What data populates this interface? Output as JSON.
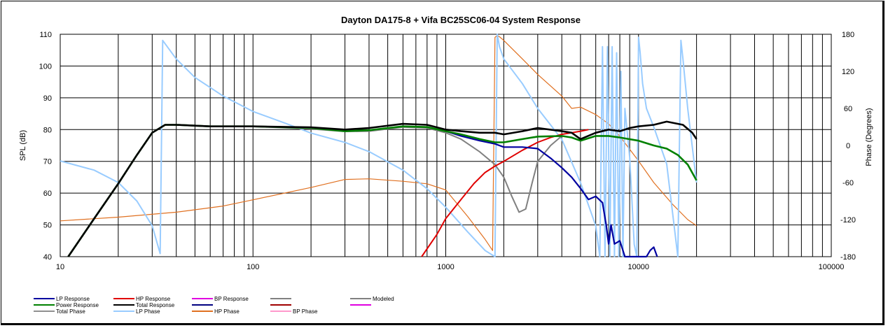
{
  "chart_data": {
    "type": "line",
    "title": "Dayton DA175-8  + Vifa BC25SC06-04      System Response",
    "ylabel": "SPL (dB)",
    "y2label": "Phase (Degrees)",
    "xscale": "log",
    "xlim": [
      10,
      100000
    ],
    "ylim": [
      40,
      110
    ],
    "y2lim": [
      -180,
      180
    ],
    "x_ticks": [
      "10",
      "100",
      "1000",
      "10000",
      "100000"
    ],
    "y_ticks": [
      "40",
      "50",
      "60",
      "70",
      "80",
      "90",
      "100",
      "110"
    ],
    "y2_ticks": [
      "-180",
      "-120",
      "-60",
      "0",
      "60",
      "120",
      "180"
    ],
    "grid": true,
    "legend_position": "bottom",
    "legend": [
      {
        "name": "LP Response",
        "color": "#0000A0"
      },
      {
        "name": "HP Response",
        "color": "#E00000"
      },
      {
        "name": "BP Response",
        "color": "#E000E0"
      },
      {
        "name": "",
        "color": "#808080"
      },
      {
        "name": "Modeled",
        "color": "#808080"
      },
      {
        "name": "Power Response",
        "color": "#008000"
      },
      {
        "name": "Total Response",
        "color": "#000000"
      },
      {
        "name": "",
        "color": "#000080"
      },
      {
        "name": "",
        "color": "#A00000"
      },
      {
        "name": "",
        "color": "#E000E0"
      },
      {
        "name": "Total Phase",
        "color": "#909090"
      },
      {
        "name": "LP Phase",
        "color": "#99CCFF"
      },
      {
        "name": "HP Phase",
        "color": "#E07020"
      },
      {
        "name": "BP Phase",
        "color": "#FF99CC"
      }
    ],
    "series": [
      {
        "name": "Total Response",
        "axis": "left",
        "color": "#000000",
        "width": 2.6,
        "x": [
          11,
          15,
          20,
          25,
          30,
          35,
          40,
          60,
          100,
          200,
          300,
          400,
          600,
          800,
          1000,
          1200,
          1500,
          1800,
          2000,
          2500,
          3000,
          4000,
          4500,
          5000,
          6000,
          7000,
          8000,
          9000,
          10000,
          12000,
          14000,
          17000,
          19000,
          20000
        ],
        "y": [
          40,
          52,
          63,
          72,
          79,
          81.5,
          81.5,
          81,
          81,
          80.7,
          80,
          80.5,
          81.8,
          81.5,
          80,
          79.5,
          79,
          79,
          78.5,
          79.5,
          80.5,
          79.5,
          79,
          77,
          79,
          80,
          79.5,
          80.5,
          81,
          81.5,
          82.5,
          81.5,
          79,
          77
        ]
      },
      {
        "name": "Power Response",
        "axis": "left",
        "color": "#008000",
        "width": 2.6,
        "x": [
          11,
          15,
          20,
          25,
          30,
          35,
          40,
          60,
          100,
          200,
          300,
          400,
          600,
          800,
          1000,
          1200,
          1500,
          1800,
          2000,
          2500,
          3000,
          4000,
          4500,
          5000,
          6000,
          7000,
          8000,
          10000,
          12000,
          14000,
          16000,
          18000,
          20000
        ],
        "y": [
          40,
          52,
          63,
          72,
          79,
          81.5,
          81.5,
          81,
          81,
          80.5,
          79.5,
          79.8,
          81,
          80.8,
          79.5,
          78.5,
          77,
          76,
          76,
          77,
          77.8,
          78,
          77.5,
          76.5,
          78,
          78,
          77.5,
          76.5,
          75,
          74,
          72,
          69,
          64
        ]
      },
      {
        "name": "Total Phase",
        "axis": "left",
        "color": "#808080",
        "width": 2,
        "x": [
          11,
          15,
          20,
          25,
          30,
          35,
          40,
          60,
          100,
          200,
          300,
          400,
          600,
          800,
          1000,
          1200,
          1500,
          1800,
          2000,
          2200,
          2400,
          2600,
          2800,
          3000,
          3500,
          4000
        ],
        "y": [
          40,
          52,
          63,
          72,
          79,
          81.5,
          81.5,
          81,
          81,
          80.2,
          79.4,
          79.5,
          80.8,
          80.5,
          79,
          77,
          73,
          69,
          65,
          59,
          54,
          55,
          63,
          70,
          75,
          78
        ]
      },
      {
        "name": "LP Response",
        "axis": "left",
        "color": "#0000A0",
        "width": 2.2,
        "x": [
          1000,
          1200,
          1500,
          1800,
          2000,
          2500,
          3000,
          3500,
          4000,
          4500,
          5000,
          5500,
          6000,
          6500,
          6800,
          7000,
          7200,
          7500,
          8000,
          8500,
          10000,
          11000,
          11500,
          12000,
          12500
        ],
        "y": [
          79.5,
          78,
          76.5,
          75.5,
          74.5,
          74.5,
          74,
          71,
          68,
          65,
          61.5,
          58,
          59,
          57,
          50,
          44,
          50,
          44,
          45,
          39,
          40,
          40,
          42,
          43,
          40
        ]
      },
      {
        "name": "HP Response",
        "axis": "left",
        "color": "#E00000",
        "width": 2,
        "x": [
          750,
          900,
          1000,
          1200,
          1400,
          1600,
          1800,
          2000,
          2500,
          3000,
          3500,
          4000,
          4500,
          5000,
          5500
        ],
        "y": [
          40,
          47,
          52,
          58,
          63,
          66.5,
          68.5,
          70,
          73.5,
          76,
          77.5,
          78.5,
          79,
          79.5,
          80
        ]
      },
      {
        "name": "LP Phase",
        "axis": "right",
        "color": "#99CCFF",
        "width": 2,
        "x": [
          10,
          15,
          20,
          25,
          30,
          33,
          34,
          40,
          50,
          70,
          100,
          150,
          200,
          300,
          400,
          600,
          800,
          1000,
          1300,
          1600,
          1800,
          1850,
          1900,
          2000,
          2500,
          3000,
          4000,
          5000,
          6000,
          6300,
          6500,
          6700,
          6900,
          7100,
          7300,
          7500,
          7700,
          7900,
          8100,
          8300,
          8500,
          9000,
          9500,
          9800,
          10000,
          10200,
          10500,
          11000,
          12000,
          14000,
          16000,
          16600,
          17000,
          18000,
          20000
        ],
        "y": [
          -25,
          -40,
          -60,
          -90,
          -130,
          -175,
          170,
          140,
          110,
          80,
          55,
          35,
          20,
          5,
          -10,
          -40,
          -70,
          -100,
          -140,
          -170,
          -180,
          180,
          160,
          140,
          100,
          60,
          10,
          -60,
          -130,
          -180,
          160,
          -180,
          160,
          -180,
          160,
          -180,
          150,
          -180,
          120,
          -180,
          60,
          -20,
          -160,
          -180,
          175,
          150,
          100,
          60,
          30,
          -30,
          -180,
          170,
          140,
          60,
          -60
        ]
      },
      {
        "name": "HP Phase",
        "axis": "right",
        "color": "#E07020",
        "width": 1.2,
        "x": [
          10,
          20,
          40,
          70,
          100,
          200,
          300,
          400,
          600,
          800,
          1000,
          1300,
          1600,
          1750,
          1800,
          1850,
          1900,
          2000,
          2500,
          3000,
          4000,
          4500,
          5000,
          6000,
          7000,
          8000,
          10000,
          12000,
          15000,
          18000,
          20000
        ],
        "y": [
          -122,
          -116,
          -108,
          -98,
          -88,
          -68,
          -55,
          -54,
          -58,
          -62,
          -72,
          -115,
          -152,
          -170,
          175,
          178,
          176,
          170,
          140,
          115,
          80,
          60,
          62,
          50,
          35,
          15,
          -25,
          -60,
          -95,
          -120,
          -130
        ]
      }
    ]
  }
}
